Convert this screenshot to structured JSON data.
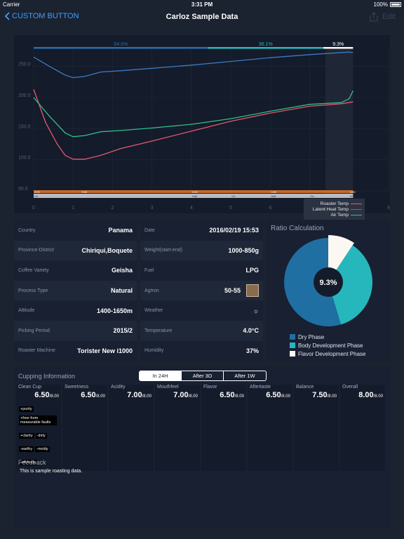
{
  "status": {
    "carrier": "Carrier",
    "time": "3:31 PM",
    "battery": "100%"
  },
  "nav": {
    "back_label": "CUSTOM BUTTON",
    "title": "Carloz Sample Data",
    "edit_label": "Edit"
  },
  "colors": {
    "accent": "#3aa0ff",
    "roaster": "#e25a6e",
    "latent": "#3d78c4",
    "air": "#2fbf8f",
    "dry": "#1f6fa3",
    "body": "#26b7bd",
    "flavor": "#fbf7f2"
  },
  "chart_data": {
    "type": "line",
    "xlim": [
      0,
      9
    ],
    "ylim": [
      50,
      280
    ],
    "x_ticks": [
      "0",
      "1",
      "2",
      "3",
      "4",
      "5",
      "6",
      "7",
      "8",
      "9"
    ],
    "y_ticks": [
      "50.0",
      "100.0",
      "150.0",
      "200.0",
      "250.0"
    ],
    "phase_bar": {
      "segments": [
        {
          "label": "54.6%",
          "value": 54.6
        },
        {
          "label": "36.1%",
          "value": 36.1
        },
        {
          "label": "9.3%",
          "value": 9.3
        }
      ]
    },
    "highlight_range": [
      7.4,
      8.1
    ],
    "legend": [
      "Roaster Temp",
      "Latent Heat Temp",
      "Air Temp"
    ],
    "series": [
      {
        "name": "Roaster Temp",
        "color": "#e25a6e",
        "x": [
          0,
          0.3,
          0.6,
          0.8,
          1.0,
          1.3,
          1.7,
          2.2,
          3,
          4,
          5,
          6,
          7,
          7.8,
          8.1
        ],
        "y": [
          213,
          160,
          125,
          107,
          101,
          101,
          107,
          118,
          130,
          146,
          162,
          175,
          186,
          190,
          193
        ]
      },
      {
        "name": "Latent Heat Temp",
        "color": "#3d78c4",
        "x": [
          0,
          0.4,
          0.8,
          1.0,
          1.3,
          1.7,
          2.2,
          3,
          4,
          5,
          6,
          7,
          8,
          8.1
        ],
        "y": [
          265,
          250,
          236,
          232,
          234,
          241,
          243,
          247,
          252,
          258,
          264,
          269,
          273,
          272
        ]
      },
      {
        "name": "Air Temp",
        "color": "#2fbf8f",
        "x": [
          0,
          0.4,
          0.8,
          1.0,
          1.3,
          1.7,
          2.2,
          3,
          4,
          5,
          6,
          7,
          7.8,
          8.0,
          8.1
        ],
        "y": [
          200,
          170,
          143,
          137,
          139,
          145,
          147,
          151,
          157,
          166,
          178,
          189,
          192,
          198,
          211
        ]
      }
    ],
    "event_labels_top": [
      "0:00",
      "0:00",
      "0:00",
      "0:00",
      "0:00"
    ],
    "event_labels_bottom": [
      "On",
      "Half",
      "On",
      "Half",
      "On",
      "Hi"
    ]
  },
  "info": [
    {
      "label": "Country",
      "value": "Panama"
    },
    {
      "label": "Province-District",
      "value": "Chiriqui,Boquete"
    },
    {
      "label": "Coffee Variety",
      "value": "Geisha"
    },
    {
      "label": "Process Type",
      "value": "Natural"
    },
    {
      "label": "Altitude",
      "value": "1400-1650m"
    },
    {
      "label": "Picking Period",
      "value": "2015/2"
    },
    {
      "label": "Roaster Machine",
      "value": "Torister New i1000"
    }
  ],
  "info2": [
    {
      "label": "Date",
      "value": "2016/02/19 15:53"
    },
    {
      "label": "Weight(start-end)",
      "value": "1000-850g"
    },
    {
      "label": "Fuel",
      "value": "LPG"
    },
    {
      "label": "Agtron",
      "value": "50-55"
    },
    {
      "label": "Weather",
      "value": ""
    },
    {
      "label": "Temperature",
      "value": "4.0°C"
    },
    {
      "label": "Humidity",
      "value": "37%"
    }
  ],
  "ratio": {
    "title": "Ratio Calculation",
    "center_label": "9.3%",
    "slices": [
      {
        "name": "Dry Phase",
        "value": 54.6,
        "color": "#1f6fa3"
      },
      {
        "name": "Body Development Phase",
        "value": 36.1,
        "color": "#26b7bd"
      },
      {
        "name": "Flavor Development Phase",
        "value": 9.3,
        "color": "#fbf7f2"
      }
    ]
  },
  "cupping": {
    "title": "Cupping Information",
    "tabs": [
      "In 24H",
      "After 3D",
      "After 1W"
    ],
    "items": [
      {
        "name": "Clean Cup",
        "score": "6.50",
        "max": "/8.00",
        "tags": [
          "+purity",
          "+free from measurable faults",
          "+clarity",
          "-dirty",
          "-earthy",
          "-moldy",
          "-off-fruity"
        ]
      },
      {
        "name": "Sweetness",
        "score": "6.50",
        "max": "/8.00",
        "tags": []
      },
      {
        "name": "Acidity",
        "score": "7.00",
        "max": "/8.00",
        "tags": []
      },
      {
        "name": "Mouthfeel",
        "score": "7.00",
        "max": "/8.00",
        "tags": []
      },
      {
        "name": "Flavor",
        "score": "6.50",
        "max": "/8.00",
        "tags": []
      },
      {
        "name": "Aftertaste",
        "score": "6.50",
        "max": "/8.00",
        "tags": []
      },
      {
        "name": "Balance",
        "score": "7.50",
        "max": "/8.00",
        "tags": []
      },
      {
        "name": "Overall",
        "score": "8.00",
        "max": "/8.00",
        "tags": []
      }
    ],
    "feedback_title": "Feedback",
    "feedback_text": "This is sample roasting data."
  }
}
